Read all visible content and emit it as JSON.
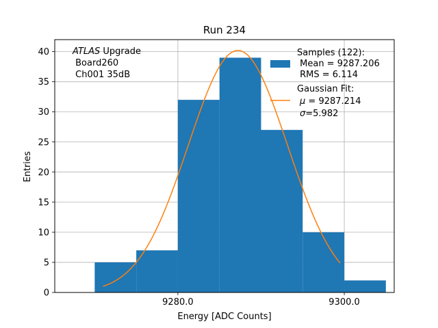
{
  "chart_data": {
    "type": "bar",
    "title": "Run 234",
    "xlabel": "Energy [ADC Counts]",
    "ylabel": "Entries",
    "xlim": [
      9265.2,
      9306.0
    ],
    "ylim": [
      0,
      42
    ],
    "xticks": [
      9280.0,
      9300.0
    ],
    "xtick_labels": [
      "9280.0",
      "9300.0"
    ],
    "yticks": [
      0,
      5,
      10,
      15,
      20,
      25,
      30,
      35,
      40
    ],
    "ytick_labels": [
      "0",
      "5",
      "10",
      "15",
      "20",
      "25",
      "30",
      "35",
      "40"
    ],
    "grid": true,
    "histogram": {
      "bin_edges": [
        9270.0,
        9275.0,
        9280.0,
        9285.0,
        9290.0,
        9295.0,
        9300.0,
        9305.0
      ],
      "counts": [
        5,
        7,
        32,
        39,
        27,
        10,
        2
      ],
      "color": "#1f77b4"
    },
    "gaussian_fit": {
      "mu": 9287.214,
      "sigma": 5.982,
      "amplitude": 40.2,
      "x_range": [
        9271.0,
        9299.5
      ],
      "color": "#ff7f0e"
    },
    "annotation": {
      "italic": "ATLAS",
      "line1_rest": " Upgrade",
      "line2": " Board260",
      "line3": " Ch001 35dB"
    },
    "legend": {
      "placement": "top-right",
      "samples_label": "Samples (122):",
      "samples_mean": " Mean = 9287.206",
      "samples_rms": " RMS = 6.114",
      "fit_label": "Gaussian Fit:",
      "fit_mu_symbol": "μ",
      "fit_mu_rest": " = 9287.214",
      "fit_sigma_symbol": "σ",
      "fit_sigma_rest": "=5.982"
    }
  }
}
